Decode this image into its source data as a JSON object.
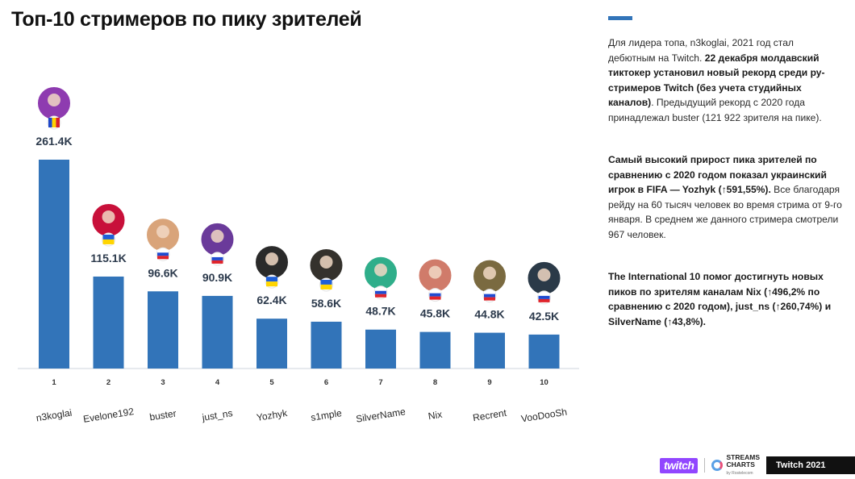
{
  "title": "Топ-10 стримеров по пику зрителей",
  "chart_data": {
    "type": "bar",
    "title": "Топ-10 стримеров по пику зрителей",
    "ranks": [
      "1",
      "2",
      "3",
      "4",
      "5",
      "6",
      "7",
      "8",
      "9",
      "10"
    ],
    "categories": [
      "n3koglai",
      "Evelone192",
      "buster",
      "just_ns",
      "Yozhyk",
      "s1mple",
      "SilverName",
      "Nix",
      "Recrent",
      "VooDooSh"
    ],
    "values": [
      261.4,
      115.1,
      96.6,
      90.9,
      62.4,
      58.6,
      48.7,
      45.8,
      44.8,
      42.5
    ],
    "value_labels": [
      "261.4K",
      "115.1K",
      "96.6K",
      "90.9K",
      "62.4K",
      "58.6K",
      "48.7K",
      "45.8K",
      "44.8K",
      "42.5K"
    ],
    "flags": [
      "md",
      "ua",
      "ru",
      "ru",
      "ua",
      "ua",
      "ru",
      "ru",
      "ru",
      "ru"
    ],
    "avatar_colors": [
      "#8e3bb0",
      "#c8103a",
      "#d9a47a",
      "#6a3a9a",
      "#2a2a2a",
      "#34312c",
      "#2fae8a",
      "#d07b6a",
      "#7a6a40",
      "#2b3a48"
    ],
    "bar_color": "#3274b9",
    "ylim": [
      0,
      261.4
    ],
    "grid": false,
    "xlabel": "",
    "ylabel": ""
  },
  "side": {
    "p1_a": "Для лидера топа, n3koglai, 2021 год стал дебютным на Twitch. ",
    "p1_b": "22 декабря молдавский тиктокер установил новый рекорд среди ру-стримеров Twitch (без учета студийных каналов)",
    "p1_c": ". Предыдущий рекорд с 2020 года принадлежал buster (121 922 зрителя на пике).",
    "p2_a": "Самый высокий прирост пика зрителей по сравнению с 2020 годом показал украинский игрок в FIFA — Yozhyk (↑591,55%).",
    "p2_b": " Все благодаря рейду на 60 тысяч человек во время стрима от 9-го января. В среднем же данного стримера смотрели 967 человек.",
    "p3": "The International 10 помог достигнуть новых пиков по зрителям каналам Nix (↑496,2% по сравнению с 2020 годом), just_ns (↑260,74%) и SilverName (↑43,8%)."
  },
  "footer": {
    "twitch": "twitch",
    "streams_charts_1": "STREAMS",
    "streams_charts_2": "CHARTS",
    "streams_charts_sub": "by Rostelecom",
    "badge": "Twitch 2021"
  }
}
